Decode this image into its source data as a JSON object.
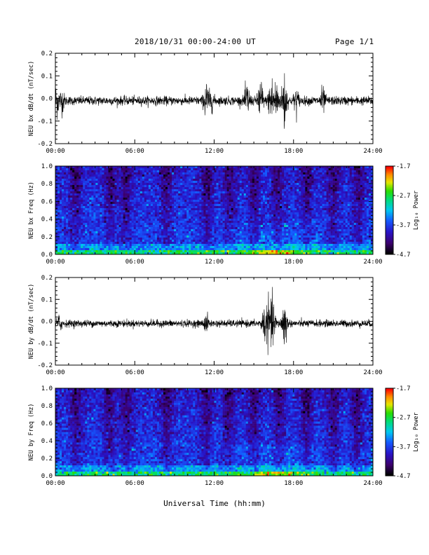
{
  "header": {
    "title": "2018/10/31  00:00-24:00 UT",
    "page": "Page 1/1"
  },
  "chart_data": [
    {
      "type": "line",
      "series_name": "NEU bx dB/dt",
      "ylabel": "NEU bx dB/dt (nT/sec)",
      "xlim": [
        0,
        24
      ],
      "ylim": [
        -0.2,
        0.2
      ],
      "yticks": [
        "0.2",
        "0.1",
        "0.0",
        "-0.1",
        "-0.2"
      ],
      "xticks": [
        "00:00",
        "06:00",
        "12:00",
        "18:00",
        "24:00"
      ],
      "noise_amplitude": 0.012,
      "bursts": [
        {
          "t": 0.1,
          "amp": 0.04
        },
        {
          "t": 0.5,
          "amp": 0.025
        },
        {
          "t": 11.4,
          "amp": 0.05
        },
        {
          "t": 11.8,
          "amp": 0.02
        },
        {
          "t": 14.5,
          "amp": 0.045
        },
        {
          "t": 15.5,
          "amp": 0.06
        },
        {
          "t": 16.3,
          "amp": 0.07
        },
        {
          "t": 16.7,
          "amp": 0.055
        },
        {
          "t": 17.3,
          "amp": 0.085
        },
        {
          "t": 18.2,
          "amp": 0.03
        },
        {
          "t": 20.2,
          "amp": 0.03
        }
      ]
    },
    {
      "type": "heatmap",
      "ylabel": "NEU bx Freq (Hz)",
      "xlim": [
        0,
        24
      ],
      "ylim": [
        0,
        1
      ],
      "yticks": [
        "1.0",
        "0.8",
        "0.6",
        "0.4",
        "0.2",
        "0.0"
      ],
      "xticks": [
        "00:00",
        "06:00",
        "12:00",
        "18:00",
        "24:00"
      ],
      "colorbar": {
        "label": "Log₁₀ Power",
        "ticks": [
          "-1.7",
          "-2.7",
          "-3.7",
          "-4.7"
        ],
        "range": [
          -4.7,
          -1.7
        ]
      },
      "dark_bands_hours": [
        1.5,
        4.2,
        5.3,
        8.4,
        11.5,
        13.2,
        15.0,
        16.8,
        19.0,
        21.0,
        22.9
      ]
    },
    {
      "type": "line",
      "series_name": "NEU by dB/dt",
      "ylabel": "NEU by dB/dt (nT/sec)",
      "xlim": [
        0,
        24
      ],
      "ylim": [
        -0.2,
        0.2
      ],
      "yticks": [
        "0.2",
        "0.1",
        "0.0",
        "-0.1",
        "-0.2"
      ],
      "xticks": [
        "00:00",
        "06:00",
        "12:00",
        "18:00",
        "24:00"
      ],
      "noise_amplitude": 0.01,
      "bursts": [
        {
          "t": 0.3,
          "amp": 0.02
        },
        {
          "t": 11.4,
          "amp": 0.02
        },
        {
          "t": 15.8,
          "amp": 0.05
        },
        {
          "t": 16.2,
          "amp": 0.08
        },
        {
          "t": 16.5,
          "amp": 0.04
        },
        {
          "t": 17.3,
          "amp": 0.075
        }
      ]
    },
    {
      "type": "heatmap",
      "ylabel": "NEU by Freq (Hz)",
      "xlim": [
        0,
        24
      ],
      "ylim": [
        0,
        1
      ],
      "yticks": [
        "1.0",
        "0.8",
        "0.6",
        "0.4",
        "0.2",
        "0.0"
      ],
      "xticks": [
        "00:00",
        "06:00",
        "12:00",
        "18:00",
        "24:00"
      ],
      "colorbar": {
        "label": "Log₁₀ Power",
        "ticks": [
          "-1.7",
          "-2.7",
          "-3.7",
          "-4.7"
        ],
        "range": [
          -4.7,
          -1.7
        ]
      },
      "dark_bands_hours": [
        1.6,
        4.1,
        5.4,
        8.4,
        11.4,
        13.1,
        15.0,
        16.9,
        19.0,
        21.0,
        22.8
      ]
    }
  ],
  "xaxis_label": "Universal Time (hh:mm)"
}
